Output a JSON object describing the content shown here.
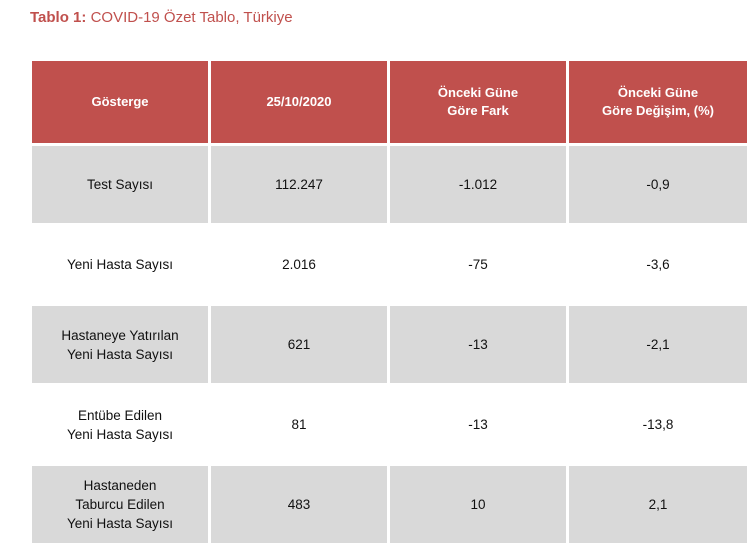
{
  "caption": {
    "label": "Tablo 1:",
    "text": "COVID-19 Özet Tablo, Türkiye"
  },
  "table": {
    "headers": [
      [
        "Gösterge"
      ],
      [
        "25/10/2020"
      ],
      [
        "Önceki Güne",
        "Göre Fark"
      ],
      [
        "Önceki Güne",
        "Göre Değişim, (%)"
      ]
    ],
    "rows": [
      {
        "indicator": [
          "Test Sayısı"
        ],
        "value": "112.247",
        "diff": "-1.012",
        "change": "-0,9"
      },
      {
        "indicator": [
          "Yeni Hasta Sayısı"
        ],
        "value": "2.016",
        "diff": "-75",
        "change": "-3,6"
      },
      {
        "indicator": [
          "Hastaneye Yatırılan",
          "Yeni Hasta Sayısı"
        ],
        "value": "621",
        "diff": "-13",
        "change": "-2,1"
      },
      {
        "indicator": [
          "Entübe Edilen",
          "Yeni Hasta Sayısı"
        ],
        "value": "81",
        "diff": "-13",
        "change": "-13,8"
      },
      {
        "indicator": [
          "Hastaneden",
          "Taburcu Edilen",
          "Yeni Hasta Sayısı"
        ],
        "value": "483",
        "diff": "10",
        "change": "2,1"
      }
    ]
  },
  "colors": {
    "header_bg": "#c0504d",
    "header_text": "#ffffff",
    "shaded_row": "#d9d9d9",
    "caption": "#c0504d"
  }
}
